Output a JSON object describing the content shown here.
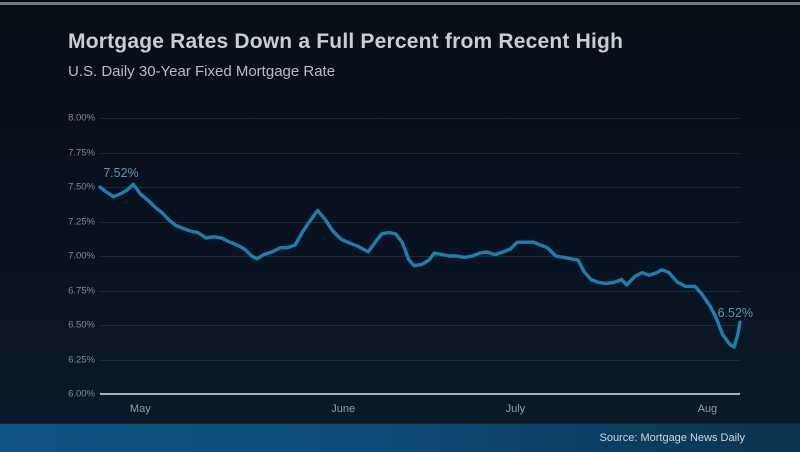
{
  "page": {
    "title": "Mortgage Rates Down a Full Percent from Recent High",
    "subtitle": "U.S. Daily 30-Year Fixed Mortgage Rate",
    "source": "Source: Mortgage News Daily"
  },
  "colors": {
    "line": "#1d7fae",
    "grid": "#1c2b36",
    "axis": "#a7b4bc",
    "ytick_label": "#7e8b95",
    "xtick_label": "#929ea6",
    "title": "#c9ced3",
    "annotation": "#6494ae",
    "footer_left": "#0f5384",
    "footer_right": "#0b344f"
  },
  "chart_data": {
    "type": "line",
    "title": "Mortgage Rates Down a Full Percent from Recent High",
    "subtitle": "U.S. Daily 30-Year Fixed Mortgage Rate",
    "xlabel": "",
    "ylabel": "",
    "ylim": [
      6.0,
      8.0
    ],
    "grid": "horizontal",
    "legend": false,
    "yticks": [
      {
        "value": 8.0,
        "label": "8.00%"
      },
      {
        "value": 7.75,
        "label": "7.75%"
      },
      {
        "value": 7.5,
        "label": "7.50%"
      },
      {
        "value": 7.25,
        "label": "7.25%"
      },
      {
        "value": 7.0,
        "label": "7.00%"
      },
      {
        "value": 6.75,
        "label": "6.75%"
      },
      {
        "value": 6.5,
        "label": "6.50%"
      },
      {
        "value": 6.25,
        "label": "6.25%"
      },
      {
        "value": 6.0,
        "label": "6.00%"
      }
    ],
    "xticks": [
      {
        "label": "May",
        "pos_pct": 6.3
      },
      {
        "label": "June",
        "pos_pct": 38.0
      },
      {
        "label": "July",
        "pos_pct": 64.9
      },
      {
        "label": "Aug",
        "pos_pct": 94.9
      }
    ],
    "series": [
      {
        "name": "U.S. Daily 30-Year Fixed Mortgage Rate",
        "color": "#1d7fae",
        "points": [
          [
            0.0,
            7.5
          ],
          [
            0.8,
            7.47
          ],
          [
            2.1,
            7.43
          ],
          [
            3.2,
            7.45
          ],
          [
            4.3,
            7.48
          ],
          [
            5.2,
            7.52
          ],
          [
            6.3,
            7.45
          ],
          [
            7.6,
            7.4
          ],
          [
            8.7,
            7.35
          ],
          [
            9.8,
            7.31
          ],
          [
            10.8,
            7.26
          ],
          [
            11.9,
            7.22
          ],
          [
            13.0,
            7.2
          ],
          [
            14.2,
            7.18
          ],
          [
            15.3,
            7.17
          ],
          [
            16.6,
            7.13
          ],
          [
            17.7,
            7.14
          ],
          [
            19.0,
            7.13
          ],
          [
            20.3,
            7.1
          ],
          [
            21.4,
            7.08
          ],
          [
            22.6,
            7.05
          ],
          [
            23.7,
            7.0
          ],
          [
            24.5,
            6.98
          ],
          [
            25.6,
            7.01
          ],
          [
            26.9,
            7.03
          ],
          [
            28.2,
            7.06
          ],
          [
            29.3,
            7.06
          ],
          [
            30.5,
            7.08
          ],
          [
            31.6,
            7.17
          ],
          [
            32.9,
            7.26
          ],
          [
            34.0,
            7.33
          ],
          [
            35.1,
            7.27
          ],
          [
            36.4,
            7.18
          ],
          [
            37.7,
            7.12
          ],
          [
            39.2,
            7.09
          ],
          [
            40.3,
            7.07
          ],
          [
            41.9,
            7.03
          ],
          [
            43.0,
            7.1
          ],
          [
            44.0,
            7.16
          ],
          [
            45.1,
            7.17
          ],
          [
            46.2,
            7.16
          ],
          [
            47.2,
            7.1
          ],
          [
            48.3,
            6.97
          ],
          [
            49.1,
            6.93
          ],
          [
            50.3,
            6.94
          ],
          [
            51.4,
            6.97
          ],
          [
            52.2,
            7.02
          ],
          [
            53.5,
            7.01
          ],
          [
            54.6,
            7.0
          ],
          [
            55.7,
            7.0
          ],
          [
            57.0,
            6.99
          ],
          [
            58.2,
            7.0
          ],
          [
            59.3,
            7.02
          ],
          [
            60.4,
            7.03
          ],
          [
            61.7,
            7.01
          ],
          [
            63.0,
            7.03
          ],
          [
            64.1,
            7.05
          ],
          [
            65.2,
            7.1
          ],
          [
            66.5,
            7.1
          ],
          [
            67.7,
            7.1
          ],
          [
            68.8,
            7.08
          ],
          [
            69.9,
            7.06
          ],
          [
            71.2,
            7.0
          ],
          [
            72.5,
            6.99
          ],
          [
            73.6,
            6.98
          ],
          [
            74.7,
            6.97
          ],
          [
            75.6,
            6.89
          ],
          [
            76.7,
            6.83
          ],
          [
            77.8,
            6.81
          ],
          [
            79.1,
            6.8
          ],
          [
            80.4,
            6.81
          ],
          [
            81.5,
            6.83
          ],
          [
            82.3,
            6.79
          ],
          [
            83.5,
            6.85
          ],
          [
            84.7,
            6.88
          ],
          [
            85.8,
            6.86
          ],
          [
            87.0,
            6.88
          ],
          [
            87.8,
            6.9
          ],
          [
            88.9,
            6.88
          ],
          [
            90.2,
            6.81
          ],
          [
            91.5,
            6.78
          ],
          [
            93.0,
            6.78
          ],
          [
            94.1,
            6.72
          ],
          [
            95.3,
            6.64
          ],
          [
            96.2,
            6.56
          ],
          [
            97.3,
            6.43
          ],
          [
            98.4,
            6.36
          ],
          [
            99.1,
            6.34
          ],
          [
            99.7,
            6.44
          ],
          [
            100.0,
            6.52
          ]
        ]
      }
    ],
    "annotations": [
      {
        "text": "7.52%",
        "x_pct": 0.5,
        "rate": 7.6
      },
      {
        "text": "6.52%",
        "x_pct": 96.5,
        "rate": 6.585
      }
    ],
    "source": "Source: Mortgage News Daily"
  }
}
